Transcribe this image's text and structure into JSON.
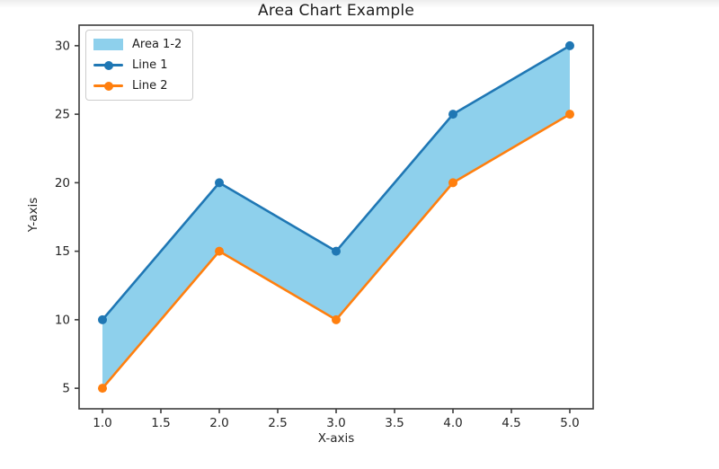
{
  "chart_data": {
    "type": "area",
    "title": "Area Chart Example",
    "xlabel": "X-axis",
    "ylabel": "Y-axis",
    "x": [
      1,
      2,
      3,
      4,
      5
    ],
    "series": [
      {
        "name": "Line 1",
        "values": [
          10,
          20,
          15,
          25,
          30
        ],
        "color": "#1f77b4",
        "marker": "circle"
      },
      {
        "name": "Line 2",
        "values": [
          5,
          15,
          10,
          20,
          25
        ],
        "color": "#ff7f0e",
        "marker": "circle"
      }
    ],
    "area_fill": {
      "label": "Area 1-2",
      "between": [
        "Line 1",
        "Line 2"
      ],
      "color": "#8ed0ec"
    },
    "xlim": [
      0.8,
      5.2
    ],
    "ylim": [
      3.5,
      31.5
    ],
    "x_ticks": [
      1,
      1.5,
      2,
      2.5,
      3,
      3.5,
      4,
      4.5,
      5
    ],
    "x_tick_labels": [
      "1.0",
      "1.5",
      "2.0",
      "2.5",
      "3.0",
      "3.5",
      "4.0",
      "4.5",
      "5.0"
    ],
    "y_ticks": [
      5,
      10,
      15,
      20,
      25,
      30
    ],
    "y_tick_labels": [
      "5",
      "10",
      "15",
      "20",
      "25",
      "30"
    ],
    "grid": false,
    "axis_color": "#3c3c3c",
    "tick_text_color": "#262626",
    "legend": {
      "position": "upper left",
      "entries": [
        {
          "label": "Area 1-2",
          "swatch": "patch",
          "color": "#8ed0ec"
        },
        {
          "label": "Line 1",
          "swatch": "line-marker",
          "color": "#1f77b4"
        },
        {
          "label": "Line 2",
          "swatch": "line-marker",
          "color": "#ff7f0e"
        }
      ]
    }
  }
}
